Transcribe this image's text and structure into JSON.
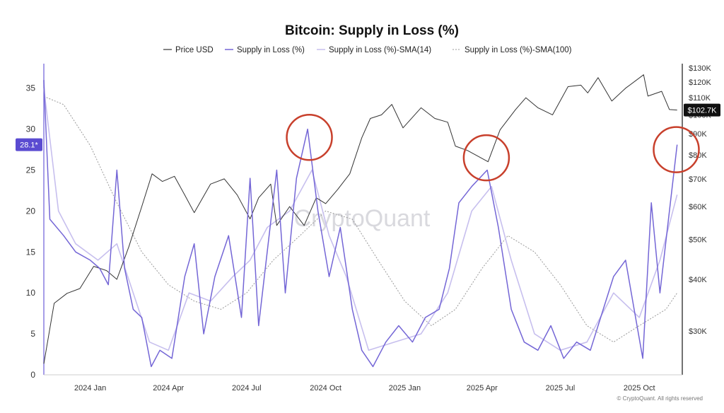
{
  "title": "Bitcoin: Supply in Loss (%)",
  "watermark": "CryptoQuant",
  "copyright": "© CryptoQuant. All rights reserved",
  "colors": {
    "price": "#333333",
    "supply": "#7466d6",
    "sma14": "#c7bfee",
    "sma100": "#999999",
    "badge_left": "#5a4bd1",
    "badge_right": "#111111",
    "circle": "#c8402c"
  },
  "legend": [
    {
      "label": "Price USD",
      "series": "price"
    },
    {
      "label": "Supply in Loss (%)",
      "series": "supply"
    },
    {
      "label": "Supply in Loss (%)-SMA(14)",
      "series": "sma14"
    },
    {
      "label": "Supply in Loss (%)-SMA(100)",
      "series": "sma100"
    }
  ],
  "chart_data": {
    "type": "line",
    "title": "Bitcoin: Supply in Loss (%)",
    "x_ticks": [
      "2024 Jan",
      "2024 Apr",
      "2024 Jul",
      "2024 Oct",
      "2025 Jan",
      "2025 Apr",
      "2025 Jul",
      "2025 Oct"
    ],
    "x_tick_dates": [
      "2024-01-01",
      "2024-04-01",
      "2024-07-01",
      "2024-10-01",
      "2025-01-01",
      "2025-04-01",
      "2025-07-01",
      "2025-10-01"
    ],
    "x_range": [
      "2023-11-08",
      "2025-11-20"
    ],
    "y_left": {
      "ticks": [
        0,
        5,
        10,
        15,
        20,
        25,
        30,
        35
      ],
      "range": [
        0,
        38
      ]
    },
    "y_right": {
      "scale": "log",
      "ticks": [
        30000,
        40000,
        50000,
        60000,
        70000,
        80000,
        90000,
        100000,
        110000,
        120000,
        130000
      ],
      "tick_labels": [
        "$30K",
        "$40K",
        "$50K",
        "$60K",
        "$70K",
        "$80K",
        "$90K",
        "$100K",
        "$110K",
        "$120K",
        "$130K"
      ],
      "range": [
        23500,
        133000
      ]
    },
    "last_value_labels": {
      "supply": "28.1*",
      "price": "$102.7K"
    },
    "series": [
      {
        "name": "Price USD",
        "key": "price",
        "axis": "right",
        "points": [
          [
            "2023-11-08",
            25000
          ],
          [
            "2023-11-20",
            35000
          ],
          [
            "2023-12-05",
            37000
          ],
          [
            "2023-12-20",
            38000
          ],
          [
            "2024-01-05",
            43000
          ],
          [
            "2024-01-20",
            42000
          ],
          [
            "2024-02-01",
            40000
          ],
          [
            "2024-02-15",
            48000
          ],
          [
            "2024-03-01",
            60000
          ],
          [
            "2024-03-13",
            72000
          ],
          [
            "2024-03-25",
            69000
          ],
          [
            "2024-04-08",
            71000
          ],
          [
            "2024-04-20",
            64000
          ],
          [
            "2024-05-01",
            58000
          ],
          [
            "2024-05-20",
            68000
          ],
          [
            "2024-06-05",
            70000
          ],
          [
            "2024-06-20",
            64000
          ],
          [
            "2024-07-05",
            56000
          ],
          [
            "2024-07-15",
            63000
          ],
          [
            "2024-07-29",
            68000
          ],
          [
            "2024-08-05",
            54000
          ],
          [
            "2024-08-20",
            60000
          ],
          [
            "2024-09-06",
            54000
          ],
          [
            "2024-09-20",
            63000
          ],
          [
            "2024-10-01",
            61000
          ],
          [
            "2024-10-15",
            66000
          ],
          [
            "2024-10-29",
            72000
          ],
          [
            "2024-11-12",
            88000
          ],
          [
            "2024-11-22",
            98000
          ],
          [
            "2024-12-05",
            100000
          ],
          [
            "2024-12-17",
            106000
          ],
          [
            "2024-12-30",
            93000
          ],
          [
            "2025-01-20",
            104000
          ],
          [
            "2025-02-05",
            98000
          ],
          [
            "2025-02-20",
            96000
          ],
          [
            "2025-03-01",
            84000
          ],
          [
            "2025-03-15",
            82000
          ],
          [
            "2025-04-08",
            77000
          ],
          [
            "2025-04-22",
            92000
          ],
          [
            "2025-05-10",
            103000
          ],
          [
            "2025-05-22",
            110000
          ],
          [
            "2025-06-05",
            104000
          ],
          [
            "2025-06-22",
            100000
          ],
          [
            "2025-07-10",
            117000
          ],
          [
            "2025-07-25",
            118000
          ],
          [
            "2025-08-02",
            113000
          ],
          [
            "2025-08-14",
            123000
          ],
          [
            "2025-08-30",
            108000
          ],
          [
            "2025-09-15",
            116000
          ],
          [
            "2025-10-06",
            125000
          ],
          [
            "2025-10-11",
            111000
          ],
          [
            "2025-10-27",
            114000
          ],
          [
            "2025-11-05",
            103000
          ],
          [
            "2025-11-14",
            102700
          ]
        ]
      },
      {
        "name": "Supply in Loss (%)",
        "key": "supply",
        "axis": "left",
        "points": [
          [
            "2023-11-08",
            36
          ],
          [
            "2023-11-15",
            19
          ],
          [
            "2023-12-01",
            17
          ],
          [
            "2023-12-15",
            15
          ],
          [
            "2024-01-01",
            14
          ],
          [
            "2024-01-12",
            13
          ],
          [
            "2024-01-22",
            11
          ],
          [
            "2024-02-01",
            25
          ],
          [
            "2024-02-10",
            13
          ],
          [
            "2024-02-20",
            8
          ],
          [
            "2024-03-01",
            7
          ],
          [
            "2024-03-12",
            1
          ],
          [
            "2024-03-22",
            3
          ],
          [
            "2024-04-05",
            2
          ],
          [
            "2024-04-20",
            12
          ],
          [
            "2024-05-01",
            16
          ],
          [
            "2024-05-12",
            5
          ],
          [
            "2024-05-25",
            12
          ],
          [
            "2024-06-10",
            17
          ],
          [
            "2024-06-25",
            7
          ],
          [
            "2024-07-05",
            24
          ],
          [
            "2024-07-15",
            6
          ],
          [
            "2024-08-05",
            25
          ],
          [
            "2024-08-15",
            10
          ],
          [
            "2024-08-28",
            24
          ],
          [
            "2024-09-10",
            30
          ],
          [
            "2024-09-22",
            20
          ],
          [
            "2024-10-05",
            12
          ],
          [
            "2024-10-18",
            18
          ],
          [
            "2024-11-01",
            8
          ],
          [
            "2024-11-12",
            3
          ],
          [
            "2024-11-25",
            1
          ],
          [
            "2024-12-10",
            4
          ],
          [
            "2024-12-25",
            6
          ],
          [
            "2025-01-10",
            4
          ],
          [
            "2025-01-25",
            7
          ],
          [
            "2025-02-10",
            8
          ],
          [
            "2025-02-22",
            13
          ],
          [
            "2025-03-05",
            21
          ],
          [
            "2025-03-20",
            23
          ],
          [
            "2025-04-07",
            25
          ],
          [
            "2025-04-20",
            18
          ],
          [
            "2025-05-05",
            8
          ],
          [
            "2025-05-20",
            4
          ],
          [
            "2025-06-05",
            3
          ],
          [
            "2025-06-20",
            6
          ],
          [
            "2025-07-05",
            2
          ],
          [
            "2025-07-20",
            4
          ],
          [
            "2025-08-05",
            3
          ],
          [
            "2025-08-20",
            8
          ],
          [
            "2025-09-01",
            12
          ],
          [
            "2025-09-15",
            14
          ],
          [
            "2025-09-25",
            8
          ],
          [
            "2025-10-05",
            2
          ],
          [
            "2025-10-15",
            21
          ],
          [
            "2025-10-25",
            10
          ],
          [
            "2025-11-05",
            20
          ],
          [
            "2025-11-14",
            28.1
          ]
        ]
      },
      {
        "name": "Supply in Loss (%)-SMA(14)",
        "key": "sma14",
        "axis": "left",
        "points": [
          [
            "2023-11-08",
            35
          ],
          [
            "2023-11-25",
            20
          ],
          [
            "2023-12-15",
            16
          ],
          [
            "2024-01-10",
            14
          ],
          [
            "2024-02-01",
            16
          ],
          [
            "2024-02-20",
            10
          ],
          [
            "2024-03-10",
            4
          ],
          [
            "2024-04-01",
            3
          ],
          [
            "2024-04-25",
            10
          ],
          [
            "2024-05-20",
            9
          ],
          [
            "2024-06-15",
            12
          ],
          [
            "2024-07-05",
            14
          ],
          [
            "2024-07-25",
            18
          ],
          [
            "2024-08-20",
            20
          ],
          [
            "2024-09-15",
            25
          ],
          [
            "2024-10-05",
            17
          ],
          [
            "2024-10-25",
            12
          ],
          [
            "2024-11-20",
            3
          ],
          [
            "2024-12-20",
            4
          ],
          [
            "2025-01-20",
            5
          ],
          [
            "2025-02-20",
            10
          ],
          [
            "2025-03-20",
            20
          ],
          [
            "2025-04-12",
            23
          ],
          [
            "2025-05-05",
            14
          ],
          [
            "2025-06-01",
            5
          ],
          [
            "2025-07-01",
            3
          ],
          [
            "2025-08-01",
            4
          ],
          [
            "2025-09-01",
            10
          ],
          [
            "2025-10-01",
            7
          ],
          [
            "2025-10-25",
            14
          ],
          [
            "2025-11-14",
            22
          ]
        ]
      },
      {
        "name": "Supply in Loss (%)-SMA(100)",
        "key": "sma100",
        "axis": "left",
        "points": [
          [
            "2023-11-08",
            34
          ],
          [
            "2023-12-01",
            33
          ],
          [
            "2024-01-01",
            28
          ],
          [
            "2024-02-01",
            21
          ],
          [
            "2024-03-01",
            15
          ],
          [
            "2024-04-01",
            11
          ],
          [
            "2024-05-01",
            9
          ],
          [
            "2024-06-01",
            8
          ],
          [
            "2024-07-01",
            10
          ],
          [
            "2024-08-01",
            14
          ],
          [
            "2024-09-01",
            17
          ],
          [
            "2024-10-01",
            20
          ],
          [
            "2024-11-01",
            19
          ],
          [
            "2024-12-01",
            14
          ],
          [
            "2025-01-01",
            9
          ],
          [
            "2025-02-01",
            6
          ],
          [
            "2025-03-01",
            8
          ],
          [
            "2025-04-01",
            13
          ],
          [
            "2025-05-01",
            17
          ],
          [
            "2025-06-01",
            15
          ],
          [
            "2025-07-01",
            11
          ],
          [
            "2025-08-01",
            6
          ],
          [
            "2025-09-01",
            4
          ],
          [
            "2025-10-01",
            6
          ],
          [
            "2025-11-01",
            8
          ],
          [
            "2025-11-14",
            10
          ]
        ]
      }
    ],
    "annotations": [
      {
        "type": "circle",
        "date": "2024-09-12",
        "value": 29
      },
      {
        "type": "circle",
        "date": "2025-04-06",
        "value": 26.5
      },
      {
        "type": "circle",
        "date": "2025-11-13",
        "value": 27.5
      }
    ]
  }
}
